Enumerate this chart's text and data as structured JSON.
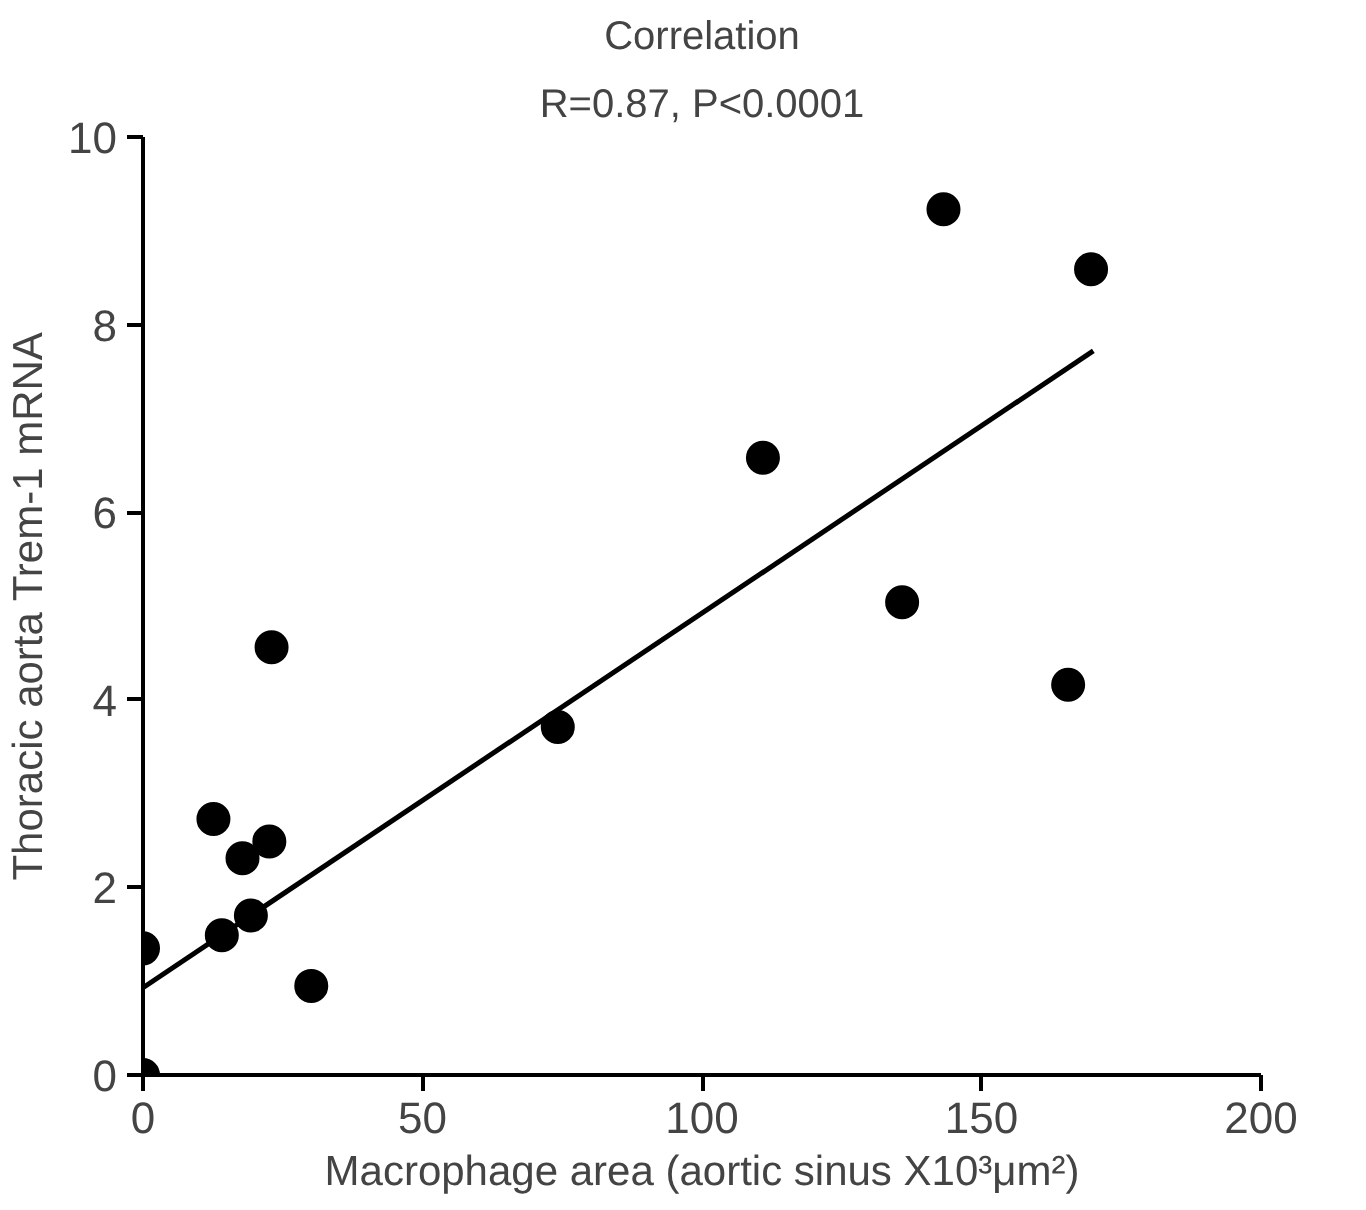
{
  "chart_data": {
    "type": "scatter",
    "title": "Correlation",
    "subtitle": "R=0.87, P<0.0001",
    "xlabel": "Macrophage area (aortic sinus X10³μm²)",
    "ylabel": "Thoracic aorta Trem-1 mRNA",
    "x": [
      0,
      0,
      12.6,
      14.1,
      17.8,
      19.3,
      22.6,
      23.0,
      30.1,
      74.2,
      110.9,
      135.8,
      143.2,
      165.5,
      169.6
    ],
    "series": [
      {
        "color": "#000000",
        "marker": "circle",
        "values": [
          0,
          1.35,
          2.73,
          1.49,
          2.31,
          1.7,
          2.49,
          4.56,
          0.95,
          3.71,
          6.58,
          5.04,
          9.23,
          4.16,
          8.59
        ]
      },
      {
        "type": "line",
        "color": "#000000",
        "marker": "none",
        "x": [
          0,
          170
        ],
        "values": [
          0.93,
          7.72
        ]
      }
    ],
    "xlim": [
      0,
      200
    ],
    "ylim": [
      0,
      10
    ],
    "xticks": [
      0,
      50,
      100,
      150,
      200
    ],
    "yticks": [
      0,
      2,
      4,
      6,
      8,
      10
    ],
    "grid": false
  }
}
